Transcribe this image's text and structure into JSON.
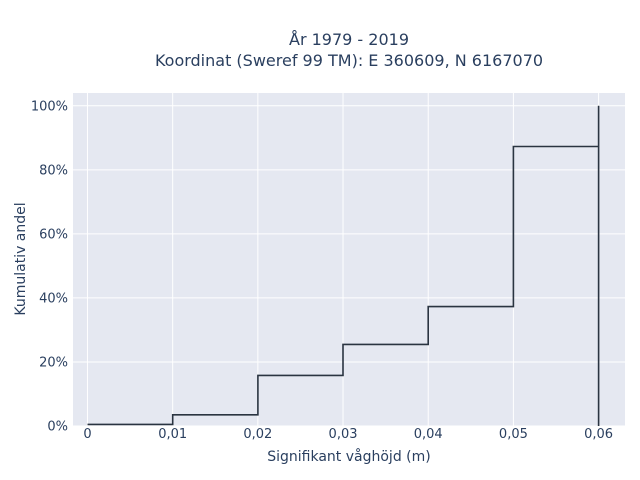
{
  "chart_data": {
    "type": "line",
    "line_shape": "step",
    "title_line1": "År 1979 - 2019",
    "title_line2": "Koordinat (Sweref 99 TM): E 360609, N 6167070",
    "xlabel": "Signifikant våghöjd (m)",
    "ylabel": "Kumulativ andel",
    "x_ticks": [
      "0",
      "0,01",
      "0,02",
      "0,03",
      "0,04",
      "0,05",
      "0,06"
    ],
    "y_ticks": [
      "0%",
      "20%",
      "40%",
      "60%",
      "80%",
      "100%"
    ],
    "xlim": [
      -0.0017,
      0.0631
    ],
    "ylim": [
      0,
      104
    ],
    "series": [
      {
        "x": [
          0,
          0.01,
          0.02,
          0.03,
          0.04,
          0.05,
          0.06,
          0.06
        ],
        "y": [
          0.5,
          3.5,
          15.8,
          25.5,
          37.3,
          87.3,
          100,
          0
        ]
      }
    ],
    "grid": true,
    "colors": {
      "background": "#e5e8f1",
      "grid": "#ffffff",
      "line": "#2a3441",
      "text": "#2a3f5f"
    }
  }
}
